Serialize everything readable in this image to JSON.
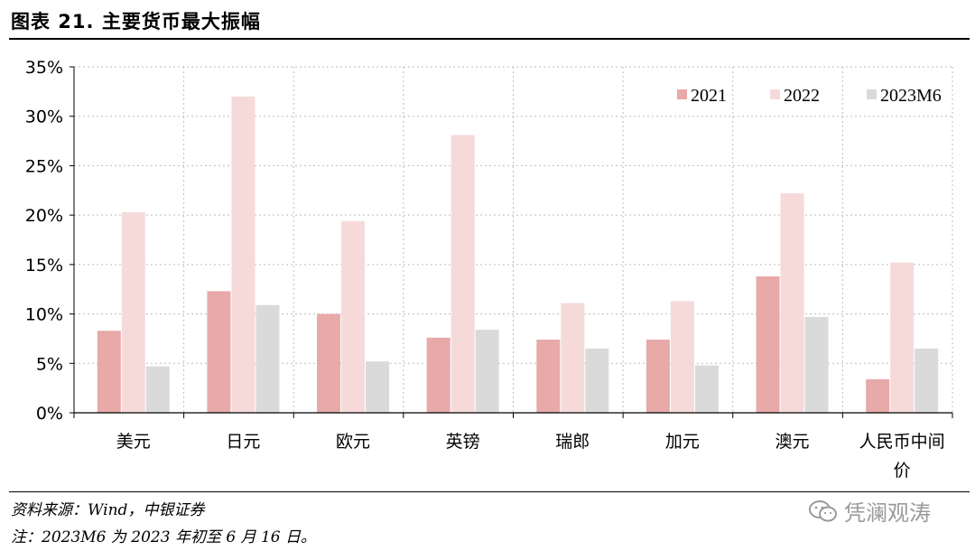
{
  "header": {
    "title": "图表 21. 主要货币最大振幅"
  },
  "footer": {
    "source": "资料来源：Wind，中银证券",
    "note": "注：2023M6 为 2023 年初至 6 月 16 日。"
  },
  "watermark": {
    "text": "凭澜观涛"
  },
  "colors": {
    "s2021": "#e8a9a9",
    "s2022": "#f6dada",
    "s2023M6": "#dadada"
  },
  "chart_data": {
    "type": "bar",
    "categories": [
      "美元",
      "日元",
      "欧元",
      "英镑",
      "瑞郎",
      "加元",
      "澳元",
      "人民币中间价"
    ],
    "series": [
      {
        "name": "2021",
        "values": [
          8.3,
          12.3,
          10.0,
          7.6,
          7.4,
          7.4,
          13.8,
          3.4
        ]
      },
      {
        "name": "2022",
        "values": [
          20.3,
          32.0,
          19.4,
          28.1,
          11.1,
          11.3,
          22.2,
          15.2
        ]
      },
      {
        "name": "2023M6",
        "values": [
          4.7,
          10.9,
          5.2,
          8.4,
          6.5,
          4.8,
          9.7,
          6.5
        ]
      }
    ],
    "ylim": [
      0,
      35
    ],
    "yticks": [
      "0%",
      "5%",
      "10%",
      "15%",
      "20%",
      "25%",
      "30%",
      "35%"
    ],
    "grid": true,
    "legend_position": "top-right"
  }
}
